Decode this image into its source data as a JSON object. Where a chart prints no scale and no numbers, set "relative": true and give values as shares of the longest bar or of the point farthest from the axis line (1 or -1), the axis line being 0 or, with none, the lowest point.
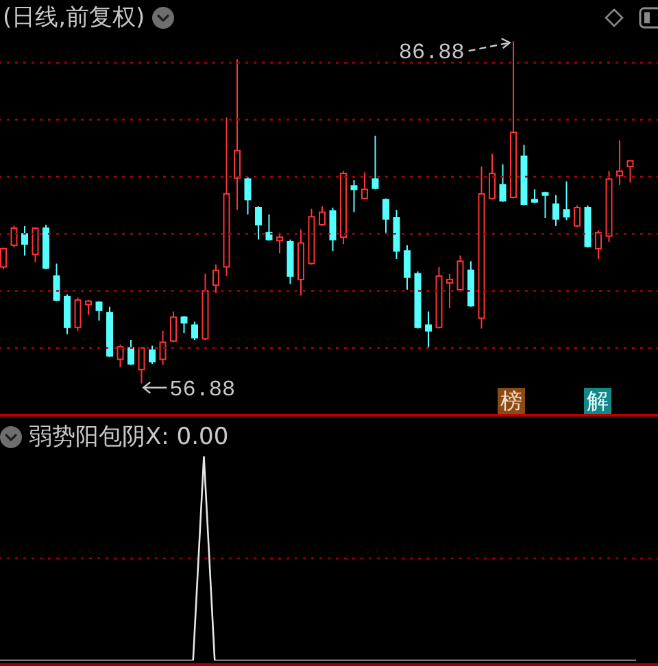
{
  "chart_data": [
    {
      "type": "candlestick",
      "title": "(日线,前复权)",
      "categories": [
        null,
        null,
        null,
        null,
        null,
        null,
        null,
        null,
        null,
        null,
        null,
        null,
        null,
        null,
        null,
        null,
        null,
        null,
        null,
        null,
        null,
        null,
        null,
        null,
        null,
        null,
        null,
        null,
        null,
        null,
        null,
        null,
        null,
        null,
        null,
        null,
        null,
        null,
        null,
        null,
        null,
        null,
        null,
        null,
        null,
        null,
        null,
        null,
        null,
        null,
        null,
        null,
        null,
        null,
        null,
        null,
        null,
        null,
        null,
        null
      ],
      "ohlc": [
        [
          67.1,
          68.8,
          66.9,
          68.7
        ],
        [
          69.0,
          70.7,
          68.8,
          70.5
        ],
        [
          70.0,
          70.7,
          68.1,
          69.1
        ],
        [
          68.2,
          70.5,
          67.5,
          70.5
        ],
        [
          70.5,
          70.8,
          66.9,
          67.0
        ],
        [
          66.3,
          67.4,
          64.1,
          64.2
        ],
        [
          64.5,
          64.7,
          61.2,
          61.8
        ],
        [
          61.8,
          64.4,
          61.5,
          64.2
        ],
        [
          63.8,
          64.2,
          62.9,
          64.1
        ],
        [
          64.0,
          64.1,
          62.4,
          63.3
        ],
        [
          63.1,
          63.6,
          59.2,
          59.3
        ],
        [
          59.0,
          60.3,
          58.3,
          60.1
        ],
        [
          60.0,
          60.7,
          58.5,
          58.6
        ],
        [
          58.1,
          60.0,
          56.88,
          60.0
        ],
        [
          59.8,
          60.2,
          58.6,
          58.8
        ],
        [
          59.0,
          61.5,
          58.5,
          60.5
        ],
        [
          60.6,
          63.2,
          60.5,
          62.7
        ],
        [
          62.7,
          62.8,
          61.3,
          62.2
        ],
        [
          62.0,
          62.3,
          60.7,
          60.9
        ],
        [
          60.8,
          66.5,
          60.7,
          65.0
        ],
        [
          65.5,
          67.3,
          64.8,
          66.8
        ],
        [
          67.1,
          80.2,
          66.3,
          73.5
        ],
        [
          74.9,
          85.3,
          72.1,
          77.3
        ],
        [
          74.8,
          75.0,
          71.7,
          73.0
        ],
        [
          72.3,
          72.4,
          69.5,
          70.8
        ],
        [
          70.1,
          71.7,
          69.4,
          69.5
        ],
        [
          69.4,
          70.1,
          68.3,
          69.7
        ],
        [
          69.3,
          69.5,
          65.6,
          66.3
        ],
        [
          66.0,
          70.4,
          64.6,
          69.2
        ],
        [
          67.4,
          72.2,
          67.3,
          71.5
        ],
        [
          70.8,
          72.4,
          70.7,
          71.9
        ],
        [
          72.0,
          72.3,
          68.5,
          69.5
        ],
        [
          69.7,
          75.5,
          69.1,
          75.3
        ],
        [
          74.2,
          74.7,
          71.9,
          73.9
        ],
        [
          73.1,
          75.4,
          73.0,
          73.9
        ],
        [
          74.8,
          78.6,
          73.9,
          74.0
        ],
        [
          73.0,
          73.1,
          70.1,
          71.3
        ],
        [
          71.4,
          72.1,
          67.8,
          68.5
        ],
        [
          68.5,
          69.0,
          65.1,
          66.2
        ],
        [
          66.5,
          66.7,
          61.7,
          61.8
        ],
        [
          62.0,
          63.2,
          60.0,
          61.5
        ],
        [
          61.8,
          67.1,
          61.7,
          66.3
        ],
        [
          65.7,
          66.5,
          63.5,
          66.0
        ],
        [
          65.1,
          68.1,
          65.0,
          67.6
        ],
        [
          66.8,
          67.6,
          63.6,
          63.7
        ],
        [
          62.6,
          75.9,
          61.7,
          73.5
        ],
        [
          73.1,
          77.0,
          73.0,
          75.3
        ],
        [
          74.3,
          76.1,
          72.8,
          72.9
        ],
        [
          73.2,
          86.88,
          73.1,
          78.9
        ],
        [
          76.8,
          77.8,
          72.5,
          72.6
        ],
        [
          73.0,
          73.9,
          72.7,
          72.8
        ],
        [
          73.6,
          73.7,
          71.4,
          73.4
        ],
        [
          72.6,
          73.4,
          70.7,
          71.3
        ],
        [
          72.1,
          74.6,
          71.2,
          71.5
        ],
        [
          70.7,
          72.5,
          70.6,
          72.3
        ],
        [
          72.3,
          72.5,
          68.8,
          68.9
        ],
        [
          68.7,
          70.3,
          67.8,
          70.1
        ],
        [
          69.8,
          75.5,
          69.3,
          74.8
        ],
        [
          75.1,
          78.2,
          74.3,
          75.5
        ],
        [
          75.9,
          76.4,
          74.5,
          76.4
        ]
      ],
      "colors": [
        "#ff3333",
        "#ff3333",
        "#55ffff",
        "#ff3333",
        "#55ffff",
        "#55ffff",
        "#55ffff",
        "#ff3333",
        "#ff3333",
        "#55ffff",
        "#55ffff",
        "#ff3333",
        "#55ffff",
        "#ff3333",
        "#55ffff",
        "#ff3333",
        "#ff3333",
        "#55ffff",
        "#55ffff",
        "#ff3333",
        "#ff3333",
        "#ff3333",
        "#ff3333",
        "#55ffff",
        "#55ffff",
        "#55ffff",
        "#ff3333",
        "#55ffff",
        "#ff3333",
        "#ff3333",
        "#ff3333",
        "#55ffff",
        "#ff3333",
        "#55ffff",
        "#ff3333",
        "#55ffff",
        "#55ffff",
        "#55ffff",
        "#55ffff",
        "#55ffff",
        "#55ffff",
        "#ff3333",
        "#ff3333",
        "#ff3333",
        "#55ffff",
        "#ff3333",
        "#ff3333",
        "#55ffff",
        "#ff3333",
        "#55ffff",
        "#55ffff",
        "#55ffff",
        "#55ffff",
        "#55ffff",
        "#ff3333",
        "#55ffff",
        "#ff3333",
        "#ff3333",
        "#ff3333",
        "#ff3333"
      ],
      "ylim": [
        54.1,
        90.5
      ],
      "yticks": [
        {
          "value": 60,
          "label": null
        },
        {
          "value": 65,
          "label": null
        },
        {
          "value": 70,
          "label": null
        },
        {
          "value": 75,
          "label": null
        },
        {
          "value": 80,
          "label": null
        },
        {
          "value": 85,
          "label": null
        }
      ],
      "grid": "y",
      "tick_labels": false,
      "annotations": [
        "86.88",
        "56.88",
        "榜",
        "解"
      ]
    },
    {
      "type": "line",
      "title": "弱势阳包阴X: 0.00",
      "categories": [
        null,
        null,
        null,
        null,
        null,
        null,
        null,
        null,
        null,
        null,
        null,
        null,
        null,
        null,
        null,
        null,
        null,
        null,
        null,
        null,
        null,
        null,
        null,
        null,
        null,
        null,
        null,
        null,
        null,
        null,
        null,
        null,
        null,
        null,
        null,
        null,
        null,
        null,
        null,
        null,
        null,
        null,
        null,
        null,
        null,
        null,
        null,
        null,
        null,
        null,
        null,
        null,
        null,
        null,
        null,
        null,
        null,
        null,
        null,
        null
      ],
      "values": [
        0,
        0,
        0,
        0,
        0,
        0,
        0,
        0,
        0,
        0,
        0,
        0,
        0,
        0,
        0,
        0,
        0,
        0,
        0,
        1,
        0,
        0,
        0,
        0,
        0,
        0,
        0,
        0,
        0,
        0,
        0,
        0,
        0,
        0,
        0,
        0,
        0,
        0,
        0,
        0,
        0,
        0,
        0,
        0,
        0,
        0,
        0,
        0,
        0,
        0,
        0,
        0,
        0,
        0,
        0,
        0,
        0,
        0,
        0,
        0
      ],
      "color": "#e6e6e6",
      "relative": true,
      "tick_labels": false,
      "ref_lines": [
        {
          "axis": "y",
          "value": 0.5,
          "color": "#a00000",
          "line_style": "dotted"
        }
      ]
    }
  ]
}
